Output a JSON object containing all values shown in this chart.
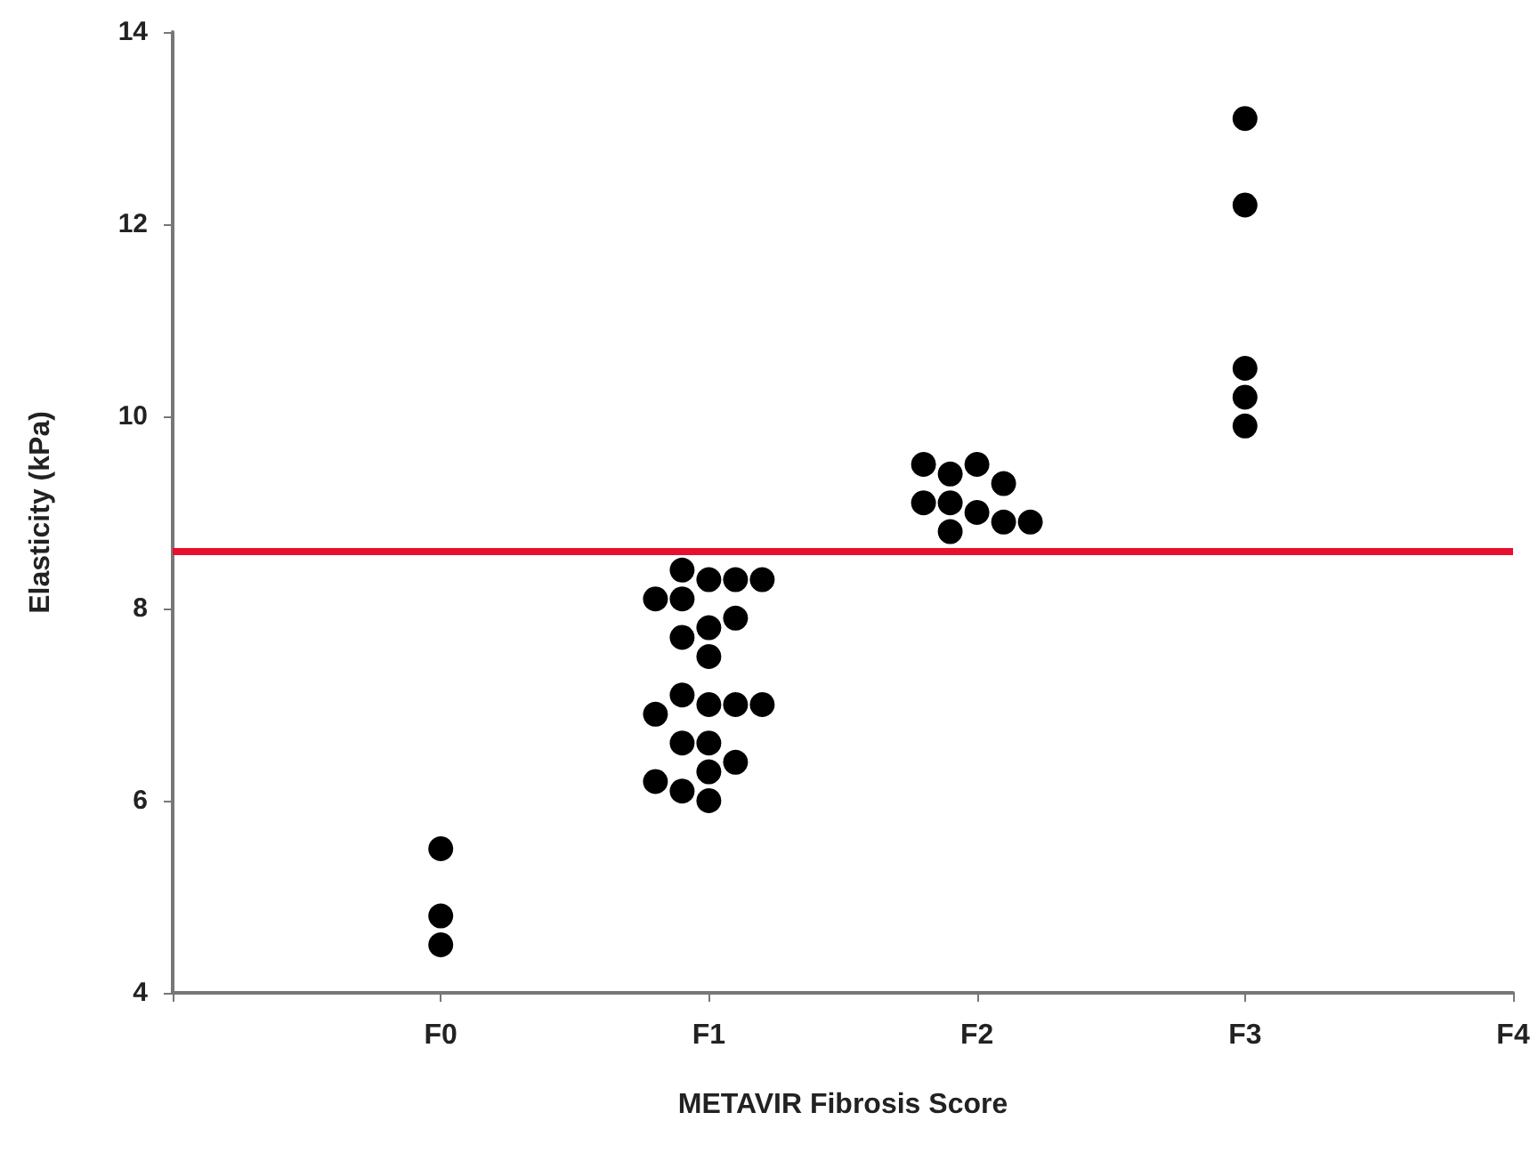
{
  "chart_data": {
    "type": "scatter",
    "xlabel": "METAVIR Fibrosis Score",
    "ylabel": "Elasticity (kPa)",
    "categories": [
      null,
      "F0",
      "F1",
      "F2",
      "F3",
      "F4"
    ],
    "series": [
      {
        "color": "#000000",
        "x": [
          "F0",
          "F0",
          "F0",
          "F1",
          "F1",
          "F1",
          "F1",
          "F1",
          "F1",
          "F1",
          "F1",
          "F1",
          "F1",
          "F1",
          "F1",
          "F1",
          "F1",
          "F1",
          "F1",
          "F1",
          "F1",
          "F1",
          "F1",
          "F1",
          "F1",
          "F2",
          "F2",
          "F2",
          "F2",
          "F2",
          "F2",
          "F2",
          "F2",
          "F2",
          "F2",
          "F3",
          "F3",
          "F3",
          "F3",
          "F3"
        ],
        "values": [
          5.5,
          4.8,
          4.5,
          8.3,
          8.1,
          7.8,
          7.0,
          6.6,
          6.3,
          6.0,
          8.3,
          8.1,
          7.7,
          7.5,
          7.1,
          7.0,
          6.9,
          6.6,
          6.1,
          8.4,
          8.3,
          7.9,
          7.0,
          6.4,
          6.2,
          9.5,
          9.0,
          9.4,
          9.3,
          9.1,
          8.9,
          8.8,
          9.5,
          9.1,
          8.9,
          13.1,
          12.2,
          10.5,
          10.2,
          9.9
        ]
      }
    ],
    "ylim": [
      4,
      14
    ],
    "yticks": [
      4,
      6,
      8,
      10,
      12,
      14
    ],
    "grid": false,
    "marker": "circle",
    "ref_lines": [
      {
        "axis": "y",
        "value": 8.6,
        "color": "#e8102e",
        "line_style": "solid"
      }
    ]
  }
}
